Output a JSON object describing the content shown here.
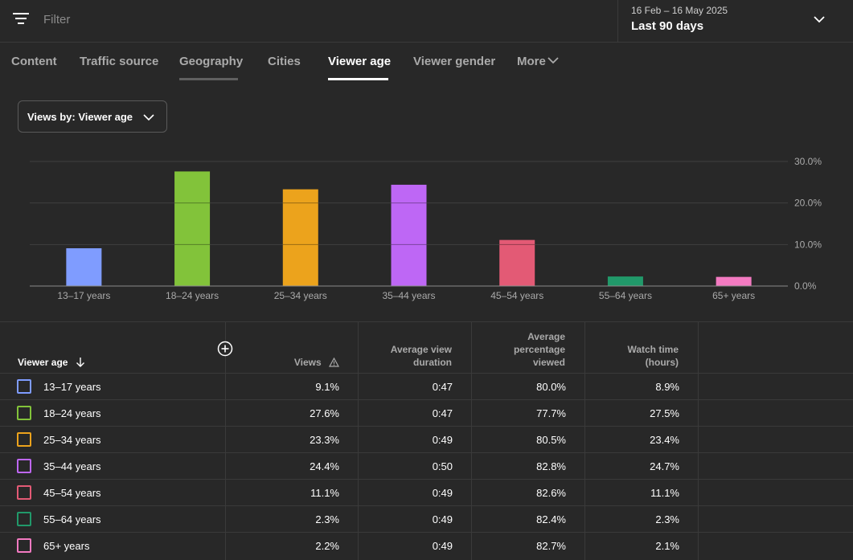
{
  "filter": {
    "placeholder": "Filter",
    "icon": "filter-icon"
  },
  "date_picker": {
    "range": "16 Feb – 16 May 2025",
    "label": "Last 90 days",
    "icon": "chevron-down-icon"
  },
  "tabs": [
    {
      "label": "Content",
      "active": false
    },
    {
      "label": "Traffic source",
      "active": false
    },
    {
      "label": "Geography",
      "active": false,
      "underline": "hover"
    },
    {
      "label": "Cities",
      "active": false
    },
    {
      "label": "Viewer age",
      "active": true
    },
    {
      "label": "Viewer gender",
      "active": false
    },
    {
      "label": "More",
      "active": false
    }
  ],
  "metric_select": {
    "label": "Views by: Viewer age"
  },
  "colors": {
    "background": "#282828",
    "grid": "#3f3f3f",
    "text_muted": "#aaaaaa"
  },
  "chart_data": {
    "type": "bar",
    "categories": [
      "13–17 years",
      "18–24 years",
      "25–34 years",
      "35–44 years",
      "45–54 years",
      "55–64 years",
      "65+ years"
    ],
    "values": [
      9.1,
      27.6,
      23.3,
      24.4,
      11.1,
      2.3,
      2.2
    ],
    "colors": [
      "#7f9cff",
      "#82c33a",
      "#eca31c",
      "#be67f5",
      "#e35a75",
      "#21996a",
      "#f37ac1"
    ],
    "y_ticks": [
      "30.0%",
      "20.0%",
      "10.0%",
      "0.0%"
    ],
    "ylim": [
      0,
      30
    ],
    "grid": true
  },
  "table": {
    "headers": {
      "age": "Viewer age",
      "views": "Views",
      "avg_view_duration": [
        "Average view",
        "duration"
      ],
      "avg_pct_viewed": [
        "Average",
        "percentage",
        "viewed"
      ],
      "watch_time": [
        "Watch time",
        "(hours)"
      ]
    },
    "rows": [
      {
        "age": "13–17 years",
        "views": "9.1%",
        "duration": "0:47",
        "pct": "80.0%",
        "watch": "8.9%",
        "color": "#7f9cff"
      },
      {
        "age": "18–24 years",
        "views": "27.6%",
        "duration": "0:47",
        "pct": "77.7%",
        "watch": "27.5%",
        "color": "#82c33a"
      },
      {
        "age": "25–34 years",
        "views": "23.3%",
        "duration": "0:49",
        "pct": "80.5%",
        "watch": "23.4%",
        "color": "#eca31c"
      },
      {
        "age": "35–44 years",
        "views": "24.4%",
        "duration": "0:50",
        "pct": "82.8%",
        "watch": "24.7%",
        "color": "#be67f5"
      },
      {
        "age": "45–54 years",
        "views": "11.1%",
        "duration": "0:49",
        "pct": "82.6%",
        "watch": "11.1%",
        "color": "#e35a75"
      },
      {
        "age": "55–64 years",
        "views": "2.3%",
        "duration": "0:49",
        "pct": "82.4%",
        "watch": "2.3%",
        "color": "#21996a"
      },
      {
        "age": "65+ years",
        "views": "2.2%",
        "duration": "0:49",
        "pct": "82.7%",
        "watch": "2.1%",
        "color": "#f37ac1"
      }
    ]
  }
}
